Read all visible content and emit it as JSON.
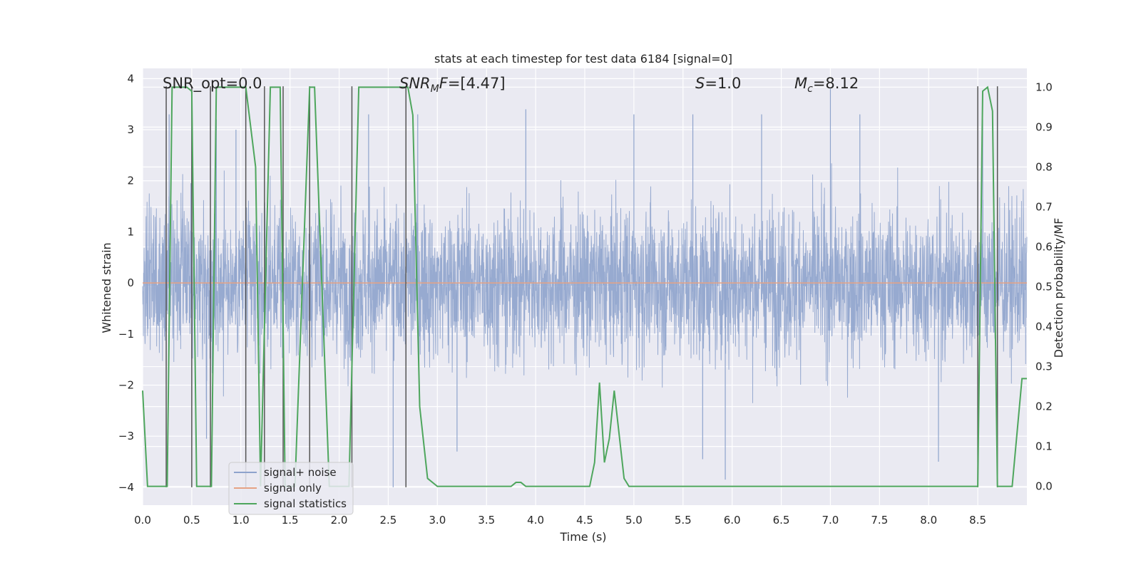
{
  "chart_data": {
    "type": "line",
    "title": "stats at each timestep for test data 6184 [signal=0]",
    "xlabel": "Time (s)",
    "ylabel": "Whitened strain",
    "y2label": "Detection probability/MF",
    "xlim": [
      0.0,
      9.0
    ],
    "ylim": [
      -4.35,
      4.2
    ],
    "y2lim": [
      -0.047,
      1.047
    ],
    "grid": true,
    "xticks": [
      0.0,
      0.5,
      1.0,
      1.5,
      2.0,
      2.5,
      3.0,
      3.5,
      4.0,
      4.5,
      5.0,
      5.5,
      6.0,
      6.5,
      7.0,
      7.5,
      8.0,
      8.5
    ],
    "xtick_labels": [
      "0.0",
      "0.5",
      "1.0",
      "1.5",
      "2.0",
      "2.5",
      "3.0",
      "3.5",
      "4.0",
      "4.5",
      "5.0",
      "5.5",
      "6.0",
      "6.5",
      "7.0",
      "7.5",
      "8.0",
      "8.5"
    ],
    "yticks": [
      4,
      3,
      2,
      1,
      0,
      -1,
      -2,
      -3,
      -4
    ],
    "ytick_labels": [
      "4",
      "3",
      "2",
      "1",
      "0",
      "−1",
      "−2",
      "−3",
      "−4"
    ],
    "y2ticks": [
      1.0,
      0.9,
      0.8,
      0.7,
      0.6,
      0.5,
      0.4,
      0.3,
      0.2,
      0.1,
      0.0
    ],
    "y2tick_labels": [
      "1.0",
      "0.9",
      "0.8",
      "0.7",
      "0.6",
      "0.5",
      "0.4",
      "0.3",
      "0.2",
      "0.1",
      "0.0"
    ],
    "annotations": {
      "snr_opt": "SNR_opt=0.0",
      "snr_mf_label": "SNR",
      "snr_mf_sub": "M",
      "snr_mf_tail": "F",
      "snr_mf_value": "=[4.47]",
      "s_label": "S",
      "s_value": "=1.0",
      "mc_label": "M",
      "mc_sub": "c",
      "mc_value": "=8.12"
    },
    "legend": {
      "location": "lower-left",
      "entries": [
        "signal+ noise",
        "signal only",
        "signal statistics"
      ]
    },
    "series": [
      {
        "name": "signal+ noise",
        "axis": "left",
        "color": "#8ea3cc",
        "description": "whitened noise strain, roughly Gaussian noise with peaks near ±3.8",
        "envelope_upper_typical": 2.4,
        "envelope_lower_typical": -2.4,
        "peaks": [
          {
            "x": 0.27,
            "y": 3.3
          },
          {
            "x": 0.5,
            "y": 3.0
          },
          {
            "x": 0.75,
            "y": 3.2
          },
          {
            "x": 0.95,
            "y": 3.0
          },
          {
            "x": 1.7,
            "y": 3.1
          },
          {
            "x": 2.3,
            "y": 3.3
          },
          {
            "x": 2.8,
            "y": 3.3
          },
          {
            "x": 3.9,
            "y": 3.4
          },
          {
            "x": 5.0,
            "y": 3.3
          },
          {
            "x": 5.6,
            "y": 3.3
          },
          {
            "x": 6.3,
            "y": 3.3
          },
          {
            "x": 7.0,
            "y": 3.8
          },
          {
            "x": 7.3,
            "y": 3.3
          },
          {
            "x": 8.55,
            "y": 3.2
          },
          {
            "x": 2.55,
            "y": -4.0
          },
          {
            "x": 5.93,
            "y": -3.85
          },
          {
            "x": 5.7,
            "y": -3.45
          },
          {
            "x": 8.1,
            "y": -3.5
          },
          {
            "x": 3.2,
            "y": -3.3
          },
          {
            "x": 0.65,
            "y": -3.05
          }
        ]
      },
      {
        "name": "signal only",
        "axis": "left",
        "color": "#e5a284",
        "x": [
          0.0,
          9.0
        ],
        "y": [
          0.0,
          0.0
        ]
      },
      {
        "name": "signal statistics",
        "axis": "right",
        "color": "#4ea65d",
        "x": [
          0.0,
          0.05,
          0.25,
          0.3,
          0.45,
          0.5,
          0.55,
          0.7,
          0.75,
          1.05,
          1.15,
          1.2,
          1.3,
          1.4,
          1.45,
          1.55,
          1.7,
          1.75,
          1.9,
          2.0,
          2.1,
          2.2,
          2.7,
          2.75,
          2.82,
          2.9,
          3.0,
          3.5,
          3.75,
          3.8,
          3.85,
          3.9,
          4.0,
          4.55,
          4.6,
          4.65,
          4.7,
          4.75,
          4.8,
          4.9,
          4.95,
          5.0,
          5.1,
          8.5,
          8.55,
          8.6,
          8.65,
          8.7,
          8.75,
          8.85,
          8.95,
          9.0
        ],
        "y": [
          0.24,
          0.0,
          0.0,
          1.0,
          1.0,
          0.99,
          0.0,
          0.0,
          1.0,
          1.0,
          0.8,
          0.0,
          1.0,
          1.0,
          0.0,
          0.0,
          1.0,
          1.0,
          0.0,
          0.0,
          0.0,
          1.0,
          1.0,
          0.93,
          0.2,
          0.02,
          0.0,
          0.0,
          0.0,
          0.01,
          0.01,
          0.0,
          0.0,
          0.0,
          0.06,
          0.26,
          0.06,
          0.12,
          0.24,
          0.02,
          0.0,
          0.0,
          0.0,
          0.0,
          0.99,
          1.0,
          0.94,
          0.0,
          0.0,
          0.0,
          0.27,
          0.27
        ]
      },
      {
        "name": "detection markers",
        "axis": "left",
        "color": "#555555",
        "type": "vlines",
        "x": [
          0.24,
          0.5,
          0.69,
          1.05,
          1.24,
          1.43,
          1.7,
          2.13,
          2.68,
          8.5,
          8.7
        ],
        "ymin": -4.0,
        "ymax": 3.85
      }
    ]
  }
}
